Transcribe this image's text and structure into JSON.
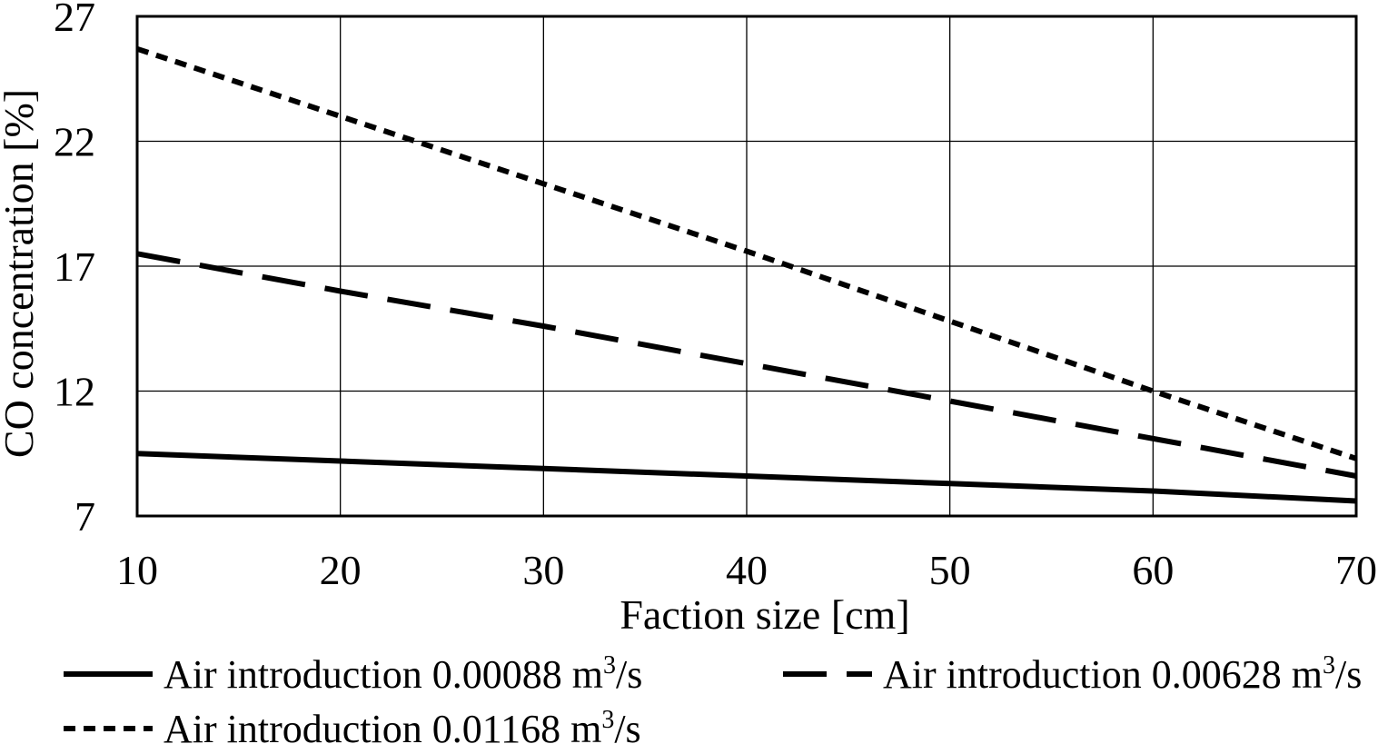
{
  "chart_data": {
    "type": "line",
    "xlabel": "Faction size [cm]",
    "ylabel": "CO concentration [%]",
    "xlim": [
      10,
      70
    ],
    "ylim": [
      7,
      27
    ],
    "x_ticks": [
      10,
      20,
      30,
      40,
      50,
      60,
      70
    ],
    "y_ticks": [
      7,
      12,
      17,
      22,
      27
    ],
    "grid": true,
    "legend_position": "bottom",
    "x": [
      10,
      20,
      30,
      40,
      50,
      60,
      70
    ],
    "series": [
      {
        "name": "Air introduction 0.00088 m3/s",
        "label_prefix": "Air introduction 0.00088 m",
        "label_sup": "3",
        "label_suffix": "/s",
        "style": "solid",
        "values": [
          9.5,
          9.2,
          8.9,
          8.6,
          8.3,
          8.0,
          7.6
        ]
      },
      {
        "name": "Air introduction 0.00628 m3/s",
        "label_prefix": "Air introduction 0.00628 m",
        "label_sup": "3",
        "label_suffix": "/s",
        "style": "long-dash",
        "values": [
          17.5,
          16.0,
          14.6,
          13.1,
          11.6,
          10.1,
          8.6
        ]
      },
      {
        "name": "Air introduction 0.01168 m3/s",
        "label_prefix": "Air introduction 0.01168 m",
        "label_sup": "3",
        "label_suffix": "/s",
        "style": "short-dash",
        "values": [
          25.7,
          23.0,
          20.3,
          17.6,
          14.8,
          12.0,
          9.3
        ]
      }
    ]
  }
}
